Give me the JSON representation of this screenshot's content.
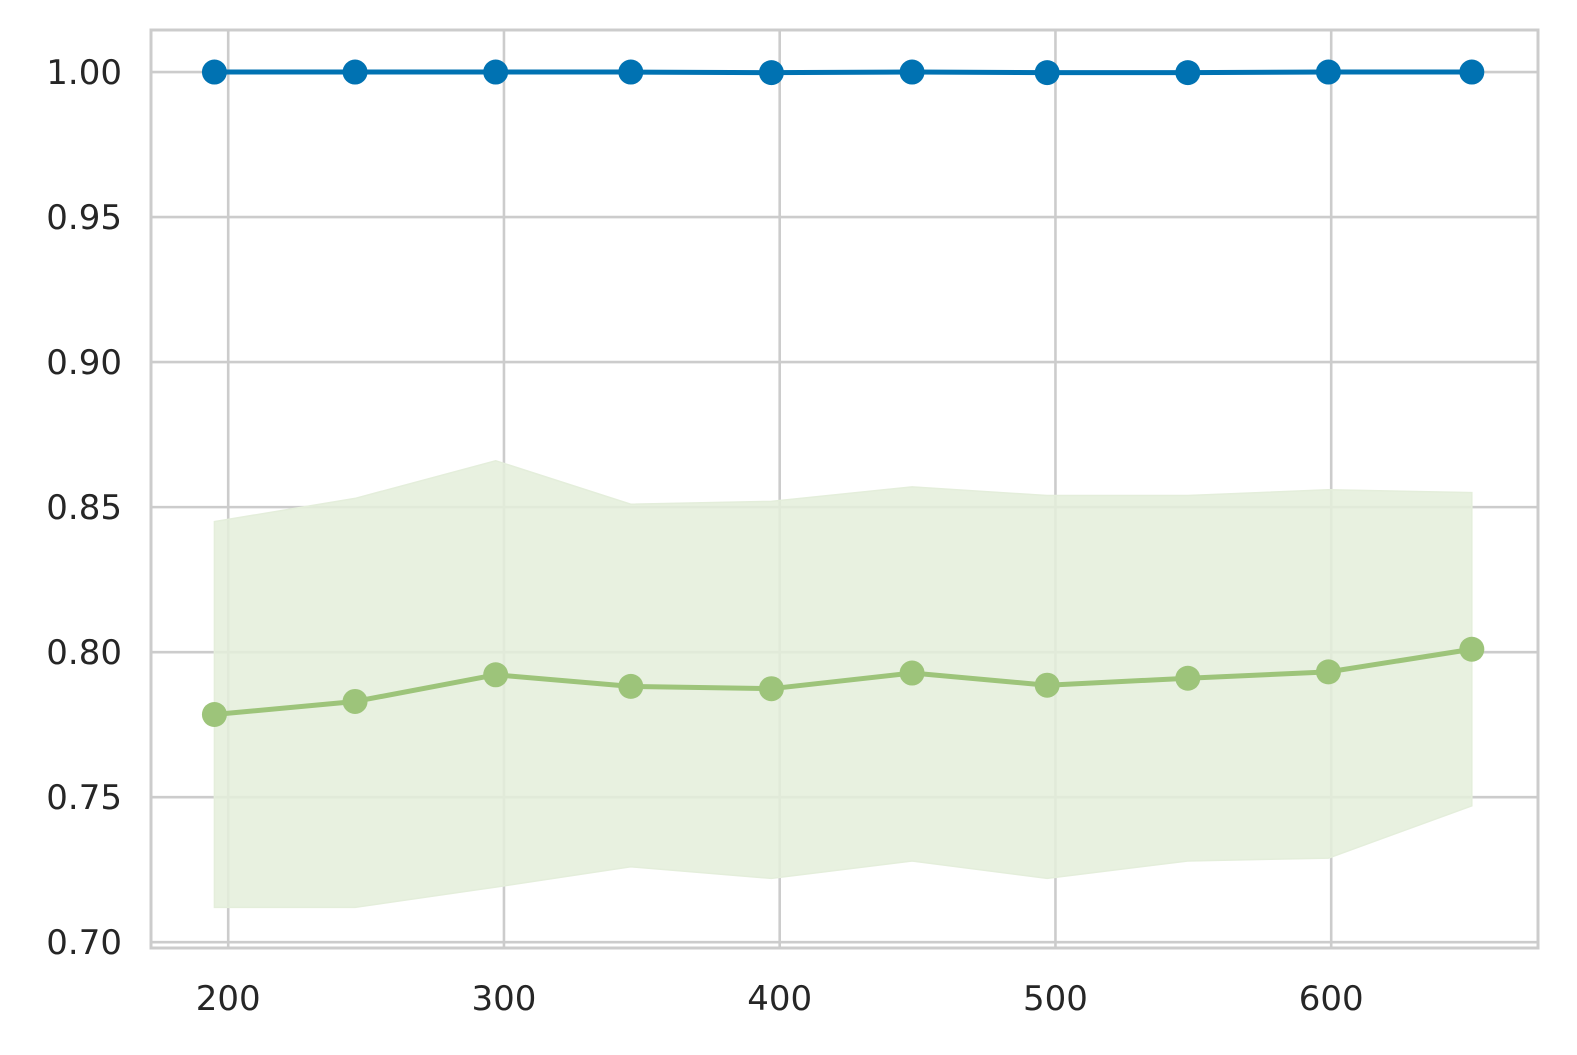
{
  "chart_data": {
    "type": "line",
    "title": "",
    "xlabel": "",
    "ylabel": "",
    "xlim": [
      172,
      675
    ],
    "ylim": [
      0.698,
      1.0145
    ],
    "grid": true,
    "x_ticks": [
      200,
      300,
      400,
      500,
      600
    ],
    "y_ticks": [
      0.7,
      0.75,
      0.8,
      0.85,
      0.9,
      0.95,
      1.0
    ],
    "x_tick_labels": [
      "200",
      "300",
      "400",
      "500",
      "600"
    ],
    "y_tick_labels": [
      "0.70",
      "0.75",
      "0.80",
      "0.85",
      "0.90",
      "0.95",
      "1.00"
    ],
    "x": [
      195,
      246,
      297,
      346,
      397,
      448,
      497,
      548,
      599,
      651
    ],
    "series": [
      {
        "color": "#0072b2",
        "values": [
          1.0,
          1.0,
          1.0,
          1.0,
          0.9998,
          1.0,
          0.9998,
          0.9998,
          1.0,
          1.0
        ]
      },
      {
        "color": "#9dc47a",
        "band_color": "#e4eedb",
        "values": [
          0.7785,
          0.783,
          0.7922,
          0.7882,
          0.7874,
          0.7928,
          0.7886,
          0.791,
          0.7932,
          0.801
        ],
        "band_upper": [
          0.845,
          0.853,
          0.866,
          0.851,
          0.852,
          0.857,
          0.854,
          0.854,
          0.856,
          0.855
        ],
        "band_lower": [
          0.712,
          0.712,
          0.719,
          0.726,
          0.722,
          0.728,
          0.722,
          0.728,
          0.729,
          0.747
        ]
      }
    ],
    "colors": {
      "grid": "#cccccc",
      "axes_edge": "#cccccc",
      "tick_text": "#262626",
      "background": "#ffffff"
    }
  }
}
